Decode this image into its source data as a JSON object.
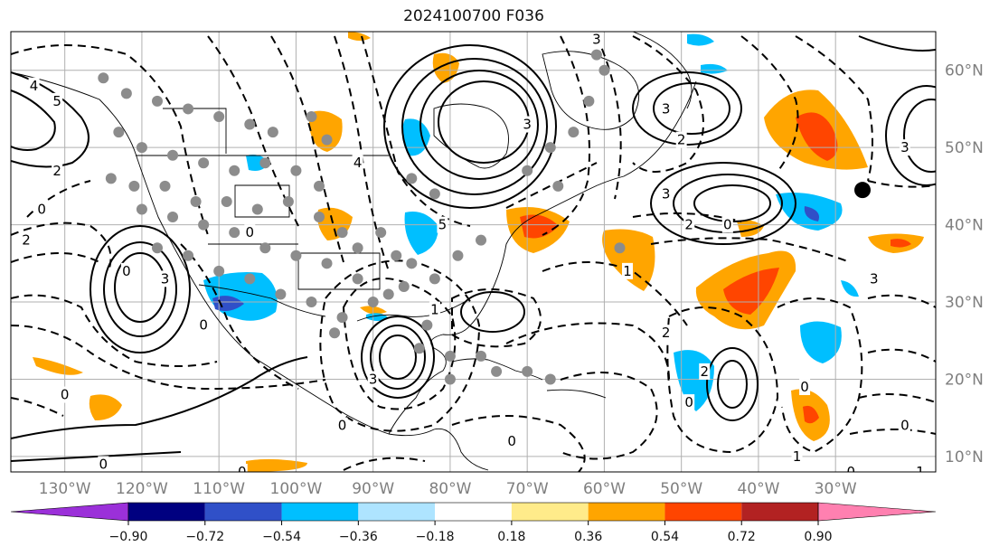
{
  "title": "2024100700 F036",
  "map": {
    "extent": {
      "lon_min": -137,
      "lon_max": -17,
      "lat_min": 8,
      "lat_max": 65
    },
    "grid": true,
    "lon_ticks": [
      {
        "lon": -130,
        "label": "130°W"
      },
      {
        "lon": -120,
        "label": "120°W"
      },
      {
        "lon": -110,
        "label": "110°W"
      },
      {
        "lon": -100,
        "label": "100°W"
      },
      {
        "lon": -90,
        "label": "90°W"
      },
      {
        "lon": -80,
        "label": "80°W"
      },
      {
        "lon": -70,
        "label": "70°W"
      },
      {
        "lon": -60,
        "label": "60°W"
      },
      {
        "lon": -50,
        "label": "50°W"
      },
      {
        "lon": -40,
        "label": "40°W"
      },
      {
        "lon": -30,
        "label": "30°W"
      }
    ],
    "lat_ticks": [
      {
        "lat": 60,
        "label": "60°N"
      },
      {
        "lat": 50,
        "label": "50°N"
      },
      {
        "lat": 40,
        "label": "40°N"
      },
      {
        "lat": 30,
        "label": "30°N"
      },
      {
        "lat": 20,
        "label": "20°N"
      },
      {
        "lat": 10,
        "label": "10°N"
      }
    ],
    "contour_labels": [
      {
        "lon": -131,
        "lat": 56,
        "text": "5"
      },
      {
        "lon": -134,
        "lat": 58,
        "text": "4"
      },
      {
        "lon": -131,
        "lat": 47,
        "text": "2"
      },
      {
        "lon": -133,
        "lat": 42,
        "text": "0"
      },
      {
        "lon": -135,
        "lat": 38,
        "text": "2"
      },
      {
        "lon": -122,
        "lat": 34,
        "text": "0"
      },
      {
        "lon": -117,
        "lat": 33,
        "text": "3"
      },
      {
        "lon": -106,
        "lat": 39,
        "text": "0"
      },
      {
        "lon": -92,
        "lat": 48,
        "text": "4"
      },
      {
        "lon": -81,
        "lat": 40,
        "text": "5"
      },
      {
        "lon": -70,
        "lat": 53,
        "text": "3"
      },
      {
        "lon": -52,
        "lat": 55,
        "text": "3"
      },
      {
        "lon": -50,
        "lat": 51,
        "text": "2"
      },
      {
        "lon": -52,
        "lat": 44,
        "text": "3"
      },
      {
        "lon": -49,
        "lat": 40,
        "text": "2"
      },
      {
        "lon": -44,
        "lat": 40,
        "text": "0"
      },
      {
        "lon": -21,
        "lat": 50,
        "text": "3"
      },
      {
        "lon": -25,
        "lat": 33,
        "text": "3"
      },
      {
        "lon": -61,
        "lat": 64,
        "text": "3"
      },
      {
        "lon": -57,
        "lat": 34,
        "text": "1"
      },
      {
        "lon": -52,
        "lat": 26,
        "text": "2"
      },
      {
        "lon": -82,
        "lat": 29,
        "text": "1"
      },
      {
        "lon": -90,
        "lat": 20,
        "text": "3"
      },
      {
        "lon": -47,
        "lat": 21,
        "text": "2"
      },
      {
        "lon": -49,
        "lat": 17,
        "text": "0"
      },
      {
        "lon": -34,
        "lat": 19,
        "text": "0"
      },
      {
        "lon": -21,
        "lat": 14,
        "text": "0"
      },
      {
        "lon": -35,
        "lat": 10,
        "text": "1"
      },
      {
        "lon": -28,
        "lat": 8,
        "text": "0"
      },
      {
        "lon": -19,
        "lat": 8,
        "text": "1"
      },
      {
        "lon": -72,
        "lat": 12,
        "text": "0"
      },
      {
        "lon": -94,
        "lat": 14,
        "text": "0"
      },
      {
        "lon": -125,
        "lat": 9,
        "text": "0"
      },
      {
        "lon": -107,
        "lat": 8,
        "text": "0"
      },
      {
        "lon": -130,
        "lat": 18,
        "text": "0"
      },
      {
        "lon": -112,
        "lat": 27,
        "text": "0"
      }
    ],
    "point_markers": [
      [
        -125,
        59
      ],
      [
        -122,
        57
      ],
      [
        -118,
        56
      ],
      [
        -114,
        55
      ],
      [
        -110,
        54
      ],
      [
        -106,
        53
      ],
      [
        -103,
        52
      ],
      [
        -98,
        54
      ],
      [
        -96,
        51
      ],
      [
        -123,
        52
      ],
      [
        -120,
        50
      ],
      [
        -116,
        49
      ],
      [
        -112,
        48
      ],
      [
        -108,
        47
      ],
      [
        -104,
        48
      ],
      [
        -100,
        47
      ],
      [
        -97,
        45
      ],
      [
        -124,
        46
      ],
      [
        -121,
        45
      ],
      [
        -117,
        45
      ],
      [
        -113,
        43
      ],
      [
        -109,
        43
      ],
      [
        -105,
        42
      ],
      [
        -101,
        43
      ],
      [
        -97,
        41
      ],
      [
        -94,
        39
      ],
      [
        -92,
        37
      ],
      [
        -120,
        42
      ],
      [
        -116,
        41
      ],
      [
        -112,
        40
      ],
      [
        -108,
        39
      ],
      [
        -104,
        37
      ],
      [
        -100,
        36
      ],
      [
        -96,
        35
      ],
      [
        -92,
        33
      ],
      [
        -88,
        31
      ],
      [
        -118,
        37
      ],
      [
        -114,
        36
      ],
      [
        -110,
        34
      ],
      [
        -106,
        33
      ],
      [
        -102,
        31
      ],
      [
        -98,
        30
      ],
      [
        -94,
        28
      ],
      [
        -90,
        30
      ],
      [
        -86,
        32
      ],
      [
        -83,
        27
      ],
      [
        -84,
        24
      ],
      [
        -80,
        23
      ],
      [
        -76,
        23
      ],
      [
        -74,
        21
      ],
      [
        -70,
        21
      ],
      [
        -67,
        20
      ],
      [
        -80,
        20
      ],
      [
        -95,
        26
      ],
      [
        -60,
        60
      ],
      [
        -62,
        56
      ],
      [
        -64,
        52
      ],
      [
        -67,
        50
      ],
      [
        -70,
        47
      ],
      [
        -66,
        45
      ],
      [
        -58,
        37
      ],
      [
        -61,
        62
      ],
      [
        -89,
        39
      ],
      [
        -87,
        36
      ],
      [
        -85,
        35
      ],
      [
        -82,
        33
      ],
      [
        -79,
        36
      ],
      [
        -76,
        38
      ],
      [
        -82,
        44
      ],
      [
        -85,
        46
      ]
    ],
    "point_marker_large": {
      "lon": -26.5,
      "lat": 44.5
    },
    "map_data_note": ""
  },
  "colorbar": {
    "ticks": [
      "−0.90",
      "−0.72",
      "−0.54",
      "−0.36",
      "−0.18",
      "0.18",
      "0.36",
      "0.54",
      "0.72",
      "0.90"
    ],
    "colors": [
      "#9b30d9",
      "#000080",
      "#3050c8",
      "#00bfff",
      "#aee4ff",
      "#ffffff",
      "#ffeb8a",
      "#ffa500",
      "#ff4500",
      "#b22222",
      "#ff80b0",
      "#ff80b0"
    ],
    "under_color": "#9b30d9",
    "over_color": "#ff80b0"
  }
}
